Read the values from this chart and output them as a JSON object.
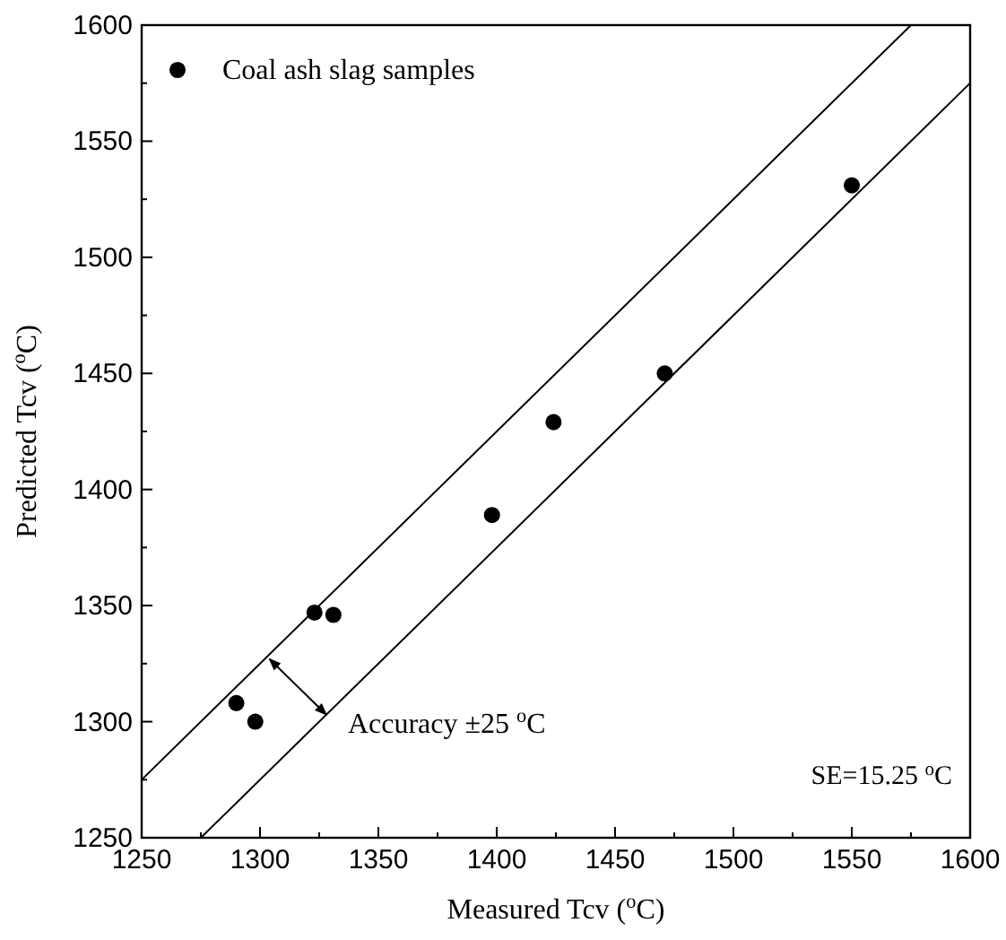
{
  "chart_data": {
    "type": "scatter",
    "xlabel": "Measured Tcv ($^{o}$C)",
    "ylabel": "Predicted Tcv ($^{o}$C)",
    "xlim": [
      1250,
      1600
    ],
    "ylim": [
      1250,
      1600
    ],
    "xticks": [
      1250,
      {
        "value": 1275,
        "label": null
      },
      1300,
      {
        "value": 1325,
        "label": null
      },
      1350,
      {
        "value": 1375,
        "label": null
      },
      1400,
      {
        "value": 1425,
        "label": null
      },
      1450,
      {
        "value": 1475,
        "label": null
      },
      1500,
      {
        "value": 1525,
        "label": null
      },
      1550,
      {
        "value": 1575,
        "label": null
      },
      1600
    ],
    "yticks": [
      1250,
      {
        "value": 1275,
        "label": null
      },
      1300,
      {
        "value": 1325,
        "label": null
      },
      1350,
      {
        "value": 1375,
        "label": null
      },
      1400,
      {
        "value": 1425,
        "label": null
      },
      1450,
      {
        "value": 1475,
        "label": null
      },
      1500,
      {
        "value": 1525,
        "label": null
      },
      1550,
      {
        "value": 1575,
        "label": null
      },
      1600
    ],
    "marker": "circle",
    "legend": "top left",
    "grid": false,
    "series": [
      {
        "name": "Coal ash slag samples",
        "color": "#000000",
        "x": [
          1290,
          1298,
          1323,
          1331,
          1398,
          1424,
          1471,
          1550
        ],
        "values": [
          1308,
          1300,
          1347,
          1346,
          1389,
          1429,
          1450,
          1531
        ]
      },
      {
        "type": "line",
        "marker": "none",
        "color": "#000000",
        "x": [
          1250,
          1575
        ],
        "values": [
          1275,
          1600
        ]
      },
      {
        "type": "line",
        "marker": "none",
        "color": "#000000",
        "x": [
          1275,
          1600
        ],
        "values": [
          1250,
          1575
        ]
      }
    ],
    "annotations": [
      {
        "text": "Accuracy ±25 $^{o}$C",
        "x": 1328,
        "y": 1303
      },
      "SE=15.25 $^{o}$C"
    ]
  }
}
